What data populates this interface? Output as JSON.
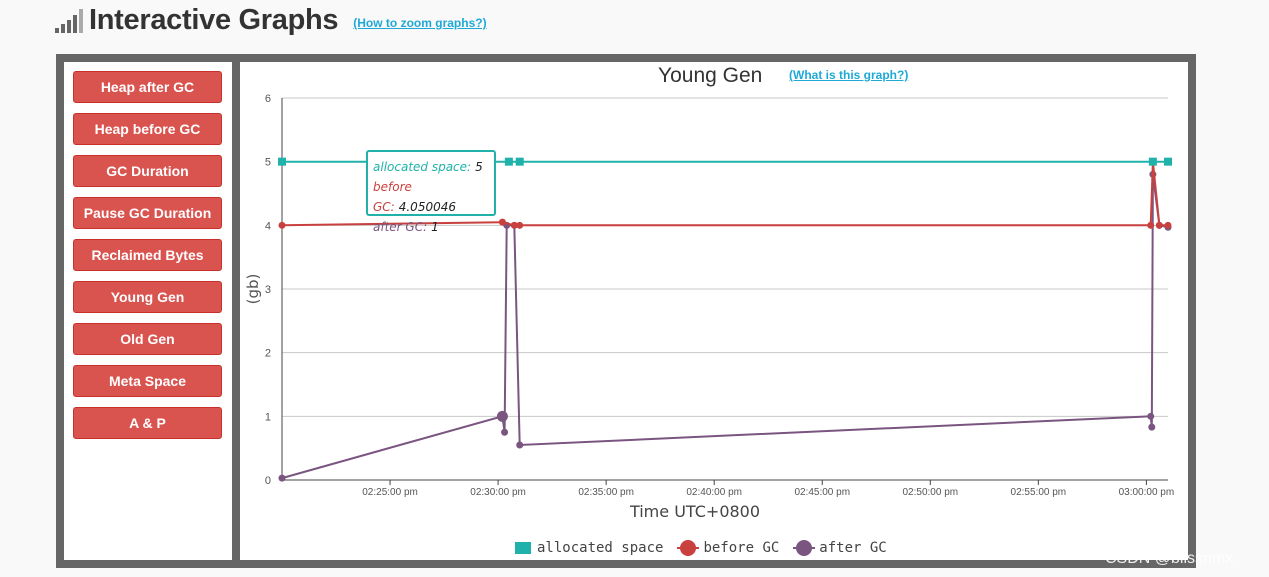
{
  "header": {
    "title": "Interactive Graphs",
    "zoom_link": "(How to zoom graphs?)"
  },
  "sidebar": {
    "buttons": [
      "Heap after GC",
      "Heap before GC",
      "GC Duration",
      "Pause GC Duration",
      "Reclaimed Bytes",
      "Young Gen",
      "Old Gen",
      "Meta Space",
      "A & P"
    ]
  },
  "chart_data": {
    "type": "line",
    "title": "Young Gen",
    "help_link": "(What is this graph?)",
    "xlabel": "Time UTC+0800",
    "ylabel": "(gb)",
    "ylim": [
      0,
      6
    ],
    "y_ticks": [
      "0",
      "1",
      "2",
      "3",
      "4",
      "5",
      "6"
    ],
    "x_tick_labels": [
      "02:25:00 pm",
      "02:30:00 pm",
      "02:35:00 pm",
      "02:40:00 pm",
      "02:45:00 pm",
      "02:50:00 pm",
      "02:55:00 pm",
      "03:00:00 pm"
    ],
    "x_ticks_minutes": [
      25,
      30,
      35,
      40,
      45,
      50,
      55,
      60
    ],
    "xlim_minutes": [
      20.0,
      61.0
    ],
    "grid": true,
    "legend_position": "bottom",
    "series": [
      {
        "name": "allocated space",
        "color": "#20b2aa",
        "marker": "square",
        "x": [
          20.0,
          30.5,
          31.0,
          60.3,
          61.0
        ],
        "y": [
          5,
          5,
          5,
          5,
          5
        ]
      },
      {
        "name": "before GC",
        "color": "#c9413e",
        "marker": "circle",
        "x": [
          20.0,
          30.2,
          30.75,
          31.0,
          60.2,
          60.3,
          60.6,
          61.0
        ],
        "y": [
          4.0,
          4.05,
          4.0,
          4.0,
          4.0,
          5.0,
          4.0,
          4.0
        ]
      },
      {
        "name": "after GC",
        "color": "#7a5580",
        "marker": "circle",
        "x": [
          20.0,
          30.2,
          30.3,
          30.4,
          30.75,
          31.0,
          60.2,
          60.25,
          60.3,
          60.6,
          61.0
        ],
        "y": [
          0.03,
          1.0,
          0.75,
          4.0,
          4.0,
          0.55,
          1.0,
          0.83,
          4.8,
          4.0,
          3.97
        ]
      }
    ],
    "tooltip": [
      {
        "label": "allocated space:",
        "value": "5"
      },
      {
        "label": "before GC:",
        "value": "4.050046"
      },
      {
        "label": "after GC:",
        "value": "1"
      }
    ]
  },
  "watermark": "CSDN @blissnmx"
}
